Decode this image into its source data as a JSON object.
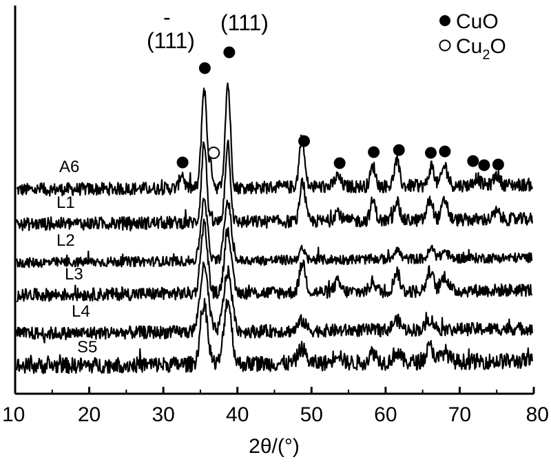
{
  "chart_data": {
    "type": "line",
    "xlabel": "2θ/(°)",
    "xlim": [
      10,
      80
    ],
    "xticks": [
      10,
      20,
      30,
      40,
      50,
      60,
      70,
      80
    ],
    "yaxis_visible": false,
    "series": [
      {
        "name": "A6",
        "label": "A6",
        "noise": 1.3,
        "peaks": [
          [
            32.5,
            3,
            0.3
          ],
          [
            35.5,
            20,
            0.35
          ],
          [
            36.4,
            4,
            0.3
          ],
          [
            38.7,
            21,
            0.35
          ],
          [
            48.7,
            10,
            0.35
          ],
          [
            53.5,
            2,
            0.4
          ],
          [
            58.3,
            4,
            0.35
          ],
          [
            61.5,
            5,
            0.35
          ],
          [
            66.2,
            4,
            0.35
          ],
          [
            68.0,
            4,
            0.4
          ],
          [
            72.3,
            1.5,
            0.4
          ],
          [
            75.0,
            2,
            0.4
          ]
        ]
      },
      {
        "name": "L1",
        "label": "L1",
        "noise": 1.3,
        "peaks": [
          [
            35.5,
            16,
            0.35
          ],
          [
            38.7,
            16,
            0.35
          ],
          [
            48.8,
            8,
            0.35
          ],
          [
            53.5,
            2,
            0.4
          ],
          [
            58.3,
            4,
            0.35
          ],
          [
            61.5,
            4,
            0.35
          ],
          [
            66.0,
            4,
            0.4
          ],
          [
            68.0,
            4,
            0.4
          ],
          [
            75.0,
            1.5,
            0.4
          ]
        ]
      },
      {
        "name": "L2",
        "label": "L2",
        "noise": 1.0,
        "peaks": [
          [
            35.5,
            12,
            0.45
          ],
          [
            38.7,
            12,
            0.45
          ],
          [
            48.7,
            2,
            0.4
          ],
          [
            61.5,
            2,
            0.4
          ],
          [
            66.2,
            2,
            0.4
          ],
          [
            68.0,
            1.5,
            0.4
          ]
        ]
      },
      {
        "name": "L3",
        "label": "L3",
        "noise": 1.3,
        "peaks": [
          [
            35.5,
            14,
            0.45
          ],
          [
            38.7,
            13,
            0.45
          ],
          [
            48.8,
            6,
            0.4
          ],
          [
            53.5,
            2,
            0.4
          ],
          [
            58.3,
            2,
            0.4
          ],
          [
            61.5,
            4,
            0.4
          ],
          [
            66.0,
            4,
            0.45
          ],
          [
            68.0,
            3,
            0.45
          ]
        ]
      },
      {
        "name": "L4",
        "label": "L4",
        "noise": 1.3,
        "peaks": [
          [
            35.5,
            13,
            0.55
          ],
          [
            38.7,
            12,
            0.55
          ],
          [
            48.7,
            2,
            0.5
          ],
          [
            61.5,
            2,
            0.5
          ],
          [
            66.0,
            2,
            0.5
          ]
        ]
      },
      {
        "name": "S5",
        "label": "S5",
        "noise": 1.6,
        "peaks": [
          [
            35.5,
            12,
            0.5
          ],
          [
            38.7,
            13,
            0.5
          ],
          [
            48.7,
            3,
            0.5
          ],
          [
            53.5,
            2,
            0.5
          ],
          [
            58.3,
            2,
            0.5
          ],
          [
            61.5,
            2,
            0.5
          ],
          [
            66.0,
            3,
            0.5
          ],
          [
            68.0,
            2,
            0.5
          ]
        ]
      }
    ],
    "annotations": {
      "cuo_markers_2theta": [
        32.6,
        35.6,
        38.9,
        49.0,
        53.8,
        58.4,
        61.8,
        66.1,
        68.0,
        71.8,
        73.3,
        75.2
      ],
      "cu2o_markers_2theta": [
        36.8
      ],
      "plane_labels": [
        {
          "text": "(111)",
          "bar": "-",
          "near_2theta": 35.6
        },
        {
          "text": "(111)",
          "near_2theta": 38.9
        }
      ]
    },
    "legend": {
      "position": "top-right",
      "entries": [
        {
          "marker": "filled-circle",
          "label": "CuO"
        },
        {
          "marker": "open-circle",
          "label": "Cu",
          "sub": "2",
          "tail": "O"
        }
      ]
    },
    "colors": {
      "line": "#000000",
      "background": "#ffffff"
    }
  }
}
